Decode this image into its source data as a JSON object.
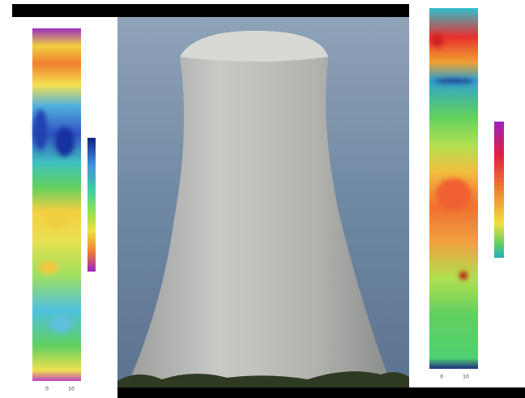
{
  "panels": [
    {
      "x_ticks": [
        "0",
        "10"
      ]
    },
    {
      "x_ticks": [
        "0",
        "10"
      ]
    }
  ]
}
